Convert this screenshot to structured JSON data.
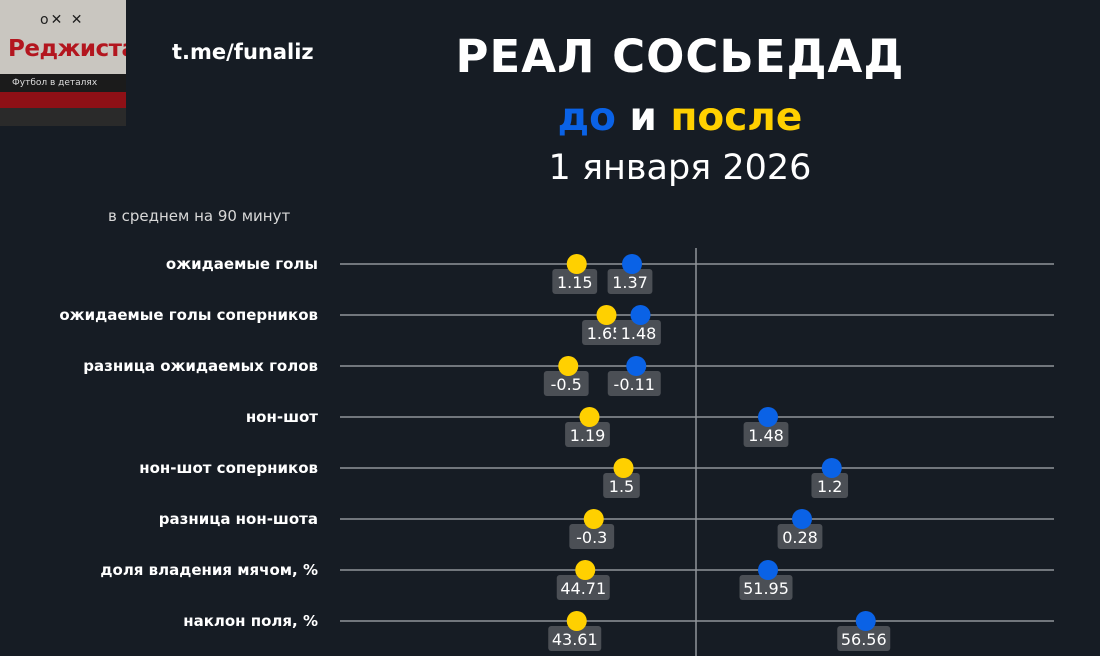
{
  "header": {
    "channel": "t.me/funaliz",
    "title": "РЕАЛ СОСЬЕДАД",
    "before_word": "до",
    "and_word": "и",
    "after_word": "после",
    "date": "1 января 2026",
    "per90_note": "в среднем на 90 минут"
  },
  "logo": {
    "name": "Реджиста",
    "tagline": "Футбол в деталях"
  },
  "colors": {
    "background": "#161c24",
    "before": "#0a62e6",
    "after": "#ffd000",
    "gridline": "#8f949a",
    "label_box": "#4b4f55"
  },
  "chart_data": {
    "type": "scatter",
    "title": "РЕАЛ СОСЬЕДАД",
    "subtitle": "до и после 1 января 2026",
    "categories": [
      "ожидаемые голы",
      "ожидаемые голы соперников",
      "разница ожидаемых голов",
      "нон-шот",
      "нон-шот соперников",
      "разница нон-шота",
      "доля владения мячом, %",
      "наклон поля, %"
    ],
    "series": [
      {
        "name": "до",
        "color": "#0a62e6",
        "values": [
          1.37,
          1.48,
          -0.11,
          1.48,
          1.2,
          0.28,
          51.95,
          56.56
        ],
        "labels": [
          "1.37",
          "1.48",
          "-0.11",
          "1.48",
          "1.2",
          "0.28",
          "51.95",
          "56.56"
        ]
      },
      {
        "name": "после",
        "color": "#ffd000",
        "values": [
          1.15,
          1.65,
          -0.5,
          1.19,
          1.5,
          -0.3,
          44.71,
          43.61
        ],
        "labels": [
          "1.15",
          "1.65",
          "-0.5",
          "1.19",
          "1.5",
          "-0.3",
          "44.71",
          "43.61"
        ]
      }
    ],
    "relative_position": {
      "before": [
        0.44,
        0.46,
        0.45,
        0.76,
        0.91,
        0.84,
        0.76,
        0.99
      ],
      "after": [
        0.31,
        0.38,
        0.29,
        0.34,
        0.42,
        0.35,
        0.33,
        0.31
      ]
    },
    "grid": true
  }
}
